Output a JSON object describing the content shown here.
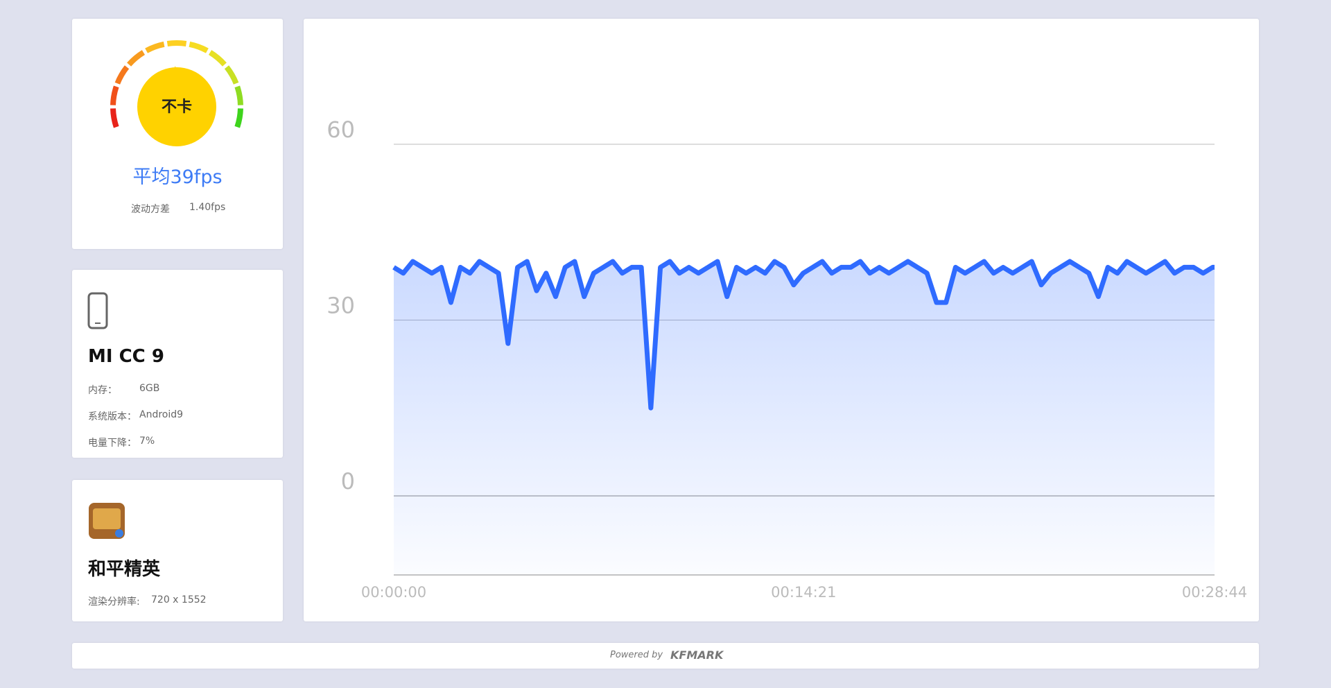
{
  "summary": {
    "status": "不卡",
    "average": "平均39fps",
    "variance_label": "波动方差",
    "variance_value": "1.40fps"
  },
  "device": {
    "name": "MI CC 9",
    "rows": [
      [
        "内存：",
        "6GB"
      ],
      [
        "系统版本：",
        "Android9"
      ],
      [
        "电量下降：",
        "7%"
      ]
    ]
  },
  "game": {
    "name": "和平精英",
    "resolution_label": "渲染分辨率:",
    "resolution_value": "720 x 1552"
  },
  "footer": {
    "powered_by": "Powered by",
    "brand": "KFMARK"
  },
  "chart_data": {
    "type": "line",
    "x": [
      0,
      20,
      40,
      60,
      80,
      100,
      120,
      140,
      160,
      180,
      200,
      220,
      240,
      260,
      280,
      300,
      320,
      340,
      360,
      380,
      400,
      420,
      440,
      460,
      480,
      500,
      520,
      540,
      560,
      580,
      600,
      620,
      640,
      660,
      680,
      700,
      720,
      740,
      760,
      780,
      800,
      820,
      840,
      860,
      880,
      900,
      920,
      940,
      960,
      980,
      1000,
      1020,
      1040,
      1060,
      1080,
      1100,
      1120,
      1140,
      1160,
      1180,
      1200,
      1220,
      1240,
      1260,
      1280,
      1300,
      1320,
      1340,
      1360,
      1380,
      1400,
      1420,
      1440,
      1460,
      1480,
      1500,
      1520,
      1540,
      1560,
      1580,
      1600,
      1620,
      1640,
      1660,
      1680,
      1700,
      1720,
      1724
    ],
    "series": [
      {
        "name": "fps",
        "color": "#2f6bff",
        "values": [
          39,
          38,
          40,
          39,
          38,
          39,
          33,
          39,
          38,
          40,
          39,
          38,
          26,
          39,
          40,
          35,
          38,
          34,
          39,
          40,
          34,
          38,
          39,
          40,
          38,
          39,
          39,
          15,
          39,
          40,
          38,
          39,
          38,
          39,
          40,
          34,
          39,
          38,
          39,
          38,
          40,
          39,
          36,
          38,
          39,
          40,
          38,
          39,
          39,
          40,
          38,
          39,
          38,
          39,
          40,
          39,
          38,
          33,
          33,
          39,
          38,
          39,
          40,
          38,
          39,
          38,
          39,
          40,
          36,
          38,
          39,
          40,
          39,
          38,
          34,
          39,
          38,
          40,
          39,
          38,
          39,
          40,
          38,
          39,
          39,
          38,
          39,
          39
        ]
      }
    ],
    "xlim": [
      0,
      1724
    ],
    "xticks": [
      {
        "value": 0,
        "label": "00:00:00"
      },
      {
        "value": 861,
        "label": "00:14:21"
      },
      {
        "value": 1724,
        "label": "00:28:44"
      }
    ],
    "ylim": [
      -13.5,
      60
    ],
    "yticks": [
      0,
      30,
      60
    ],
    "grid": true
  }
}
